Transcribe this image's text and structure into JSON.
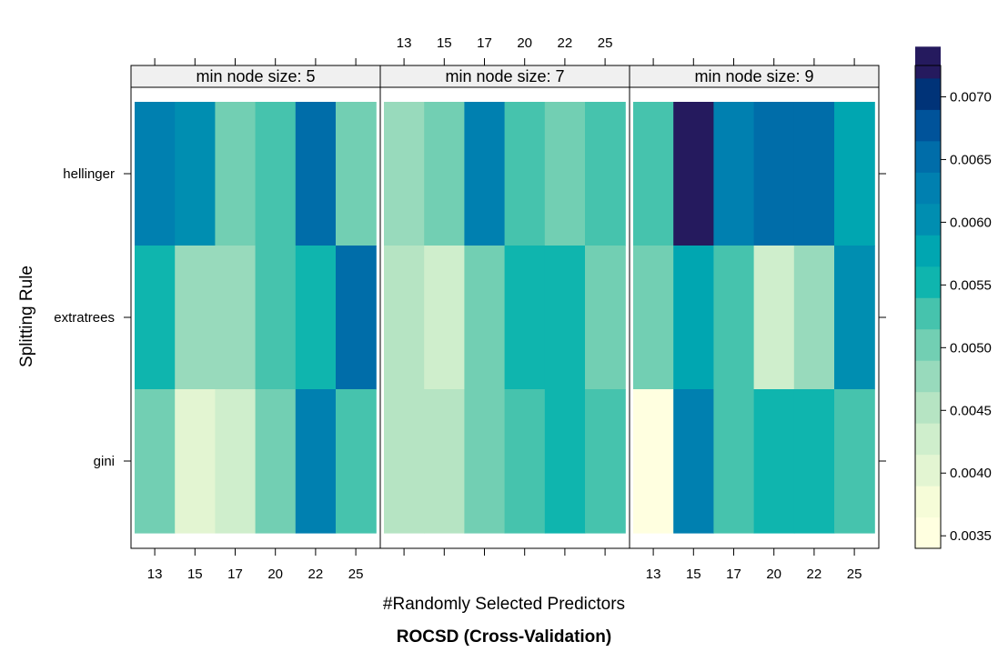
{
  "chart_data": {
    "type": "heatmap",
    "panels": [
      {
        "strip": "min node size: 5",
        "rows": {
          "gini": [
            0.005,
            0.0041,
            0.0043,
            0.0049,
            0.0062,
            0.0052
          ],
          "extratrees": [
            0.0055,
            0.0047,
            0.0047,
            0.0052,
            0.0055,
            0.0065
          ],
          "hellinger": [
            0.0063,
            0.0061,
            0.0049,
            0.0052,
            0.0066,
            0.005
          ]
        }
      },
      {
        "strip": "min node size: 7",
        "rows": {
          "gini": [
            0.0044,
            0.0046,
            0.005,
            0.0052,
            0.0056,
            0.0052
          ],
          "extratrees": [
            0.0045,
            0.0043,
            0.005,
            0.0055,
            0.0055,
            0.0049
          ],
          "hellinger": [
            0.0047,
            0.005,
            0.0062,
            0.0052,
            0.005,
            0.0052
          ]
        }
      },
      {
        "strip": "min node size: 9",
        "rows": {
          "gini": [
            0.0035,
            0.0063,
            0.0052,
            0.0055,
            0.0055,
            0.0052
          ],
          "extratrees": [
            0.005,
            0.0057,
            0.0052,
            0.0043,
            0.0047,
            0.0061
          ],
          "hellinger": [
            0.0052,
            0.0072,
            0.0062,
            0.0065,
            0.0065,
            0.0057
          ]
        }
      }
    ],
    "categories": [
      "13",
      "15",
      "17",
      "20",
      "22",
      "25"
    ],
    "row_order_top_to_bottom": [
      "hellinger",
      "extratrees",
      "gini"
    ],
    "xlabel": "#Randomly Selected Predictors",
    "ylabel": "Splitting Rule",
    "subtitle": "ROCSD (Cross-Validation)",
    "colorbar": {
      "min": 0.0034,
      "max": 0.00725,
      "step": 0.00025,
      "tick_values": [
        0.0035,
        0.004,
        0.0045,
        0.005,
        0.0055,
        0.006,
        0.0065,
        0.007
      ],
      "tick_labels": [
        "0.0035",
        "0.0040",
        "0.0045",
        "0.0050",
        "0.0055",
        "0.0060",
        "0.0065",
        "0.0070"
      ],
      "colors": [
        "#FFFFE0",
        "#F6FCD8",
        "#E3F5D2",
        "#CFEECC",
        "#B6E4C3",
        "#98DABC",
        "#72CFB3",
        "#46C3AD",
        "#0FB5AE",
        "#00A6B1",
        "#008EB1",
        "#0080B0",
        "#006DA9",
        "#00539A",
        "#003378",
        "#251A5E"
      ]
    }
  }
}
